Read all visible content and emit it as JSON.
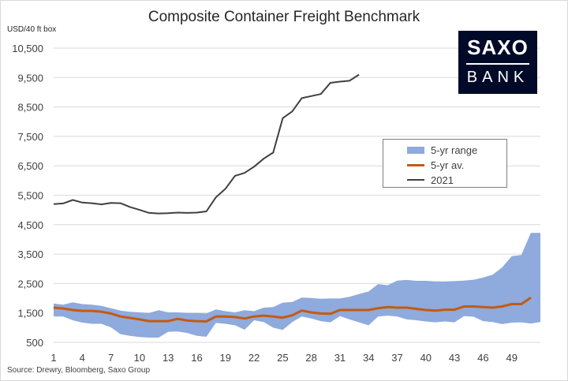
{
  "chart_data": {
    "type": "line",
    "title": "Composite Container Freight Benchmark",
    "ylabel": "USD/40 ft box",
    "xlabel": "",
    "ylim": [
      500,
      10500
    ],
    "xlim": [
      1,
      52
    ],
    "yticks": [
      "500",
      "1,500",
      "2,500",
      "3,500",
      "4,500",
      "5,500",
      "6,500",
      "7,500",
      "8,500",
      "9,500",
      "10,500"
    ],
    "xticks": [
      "1",
      "4",
      "7",
      "10",
      "13",
      "16",
      "19",
      "22",
      "25",
      "28",
      "31",
      "34",
      "37",
      "40",
      "43",
      "46",
      "49"
    ],
    "grid": "horizontal",
    "legend_position": "right",
    "range_series": {
      "name": "5-yr range",
      "color": "#8faadc",
      "x": [
        1,
        2,
        3,
        4,
        5,
        6,
        7,
        8,
        9,
        10,
        11,
        12,
        13,
        14,
        15,
        16,
        17,
        18,
        19,
        20,
        21,
        22,
        23,
        24,
        25,
        26,
        27,
        28,
        29,
        30,
        31,
        32,
        33,
        34,
        35,
        36,
        37,
        38,
        39,
        40,
        41,
        42,
        43,
        44,
        45,
        46,
        47,
        48,
        49,
        50,
        51,
        52
      ],
      "upper": [
        1820,
        1780,
        1860,
        1800,
        1780,
        1740,
        1660,
        1580,
        1540,
        1520,
        1500,
        1590,
        1520,
        1520,
        1500,
        1500,
        1480,
        1620,
        1560,
        1520,
        1590,
        1560,
        1680,
        1700,
        1850,
        1870,
        2020,
        2010,
        1980,
        1990,
        1990,
        2050,
        2140,
        2230,
        2480,
        2440,
        2600,
        2620,
        2590,
        2590,
        2570,
        2570,
        2580,
        2600,
        2630,
        2700,
        2800,
        3050,
        3430,
        3470,
        4220,
        4220
      ],
      "lower": [
        1380,
        1380,
        1250,
        1170,
        1130,
        1130,
        1010,
        780,
        720,
        680,
        660,
        660,
        860,
        870,
        820,
        720,
        690,
        1160,
        1130,
        1080,
        930,
        1250,
        1190,
        1000,
        920,
        1190,
        1380,
        1310,
        1220,
        1180,
        1390,
        1280,
        1180,
        1080,
        1380,
        1410,
        1380,
        1280,
        1250,
        1210,
        1180,
        1210,
        1180,
        1390,
        1370,
        1220,
        1190,
        1120,
        1170,
        1180,
        1140,
        1190
      ]
    },
    "series": [
      {
        "name": "5-yr av.",
        "color": "#c55a11",
        "x": [
          1,
          2,
          3,
          4,
          5,
          6,
          7,
          8,
          9,
          10,
          11,
          12,
          13,
          14,
          15,
          16,
          17,
          18,
          19,
          20,
          21,
          22,
          23,
          24,
          25,
          26,
          27,
          28,
          29,
          30,
          31,
          32,
          33,
          34,
          35,
          36,
          37,
          38,
          39,
          40,
          41,
          42,
          43,
          44,
          45,
          46,
          47,
          48,
          49,
          50,
          51
        ],
        "values": [
          1680,
          1650,
          1600,
          1570,
          1570,
          1540,
          1480,
          1380,
          1330,
          1280,
          1220,
          1220,
          1220,
          1300,
          1240,
          1220,
          1210,
          1380,
          1380,
          1360,
          1310,
          1380,
          1410,
          1380,
          1340,
          1420,
          1580,
          1520,
          1480,
          1470,
          1600,
          1600,
          1600,
          1600,
          1660,
          1700,
          1680,
          1680,
          1640,
          1600,
          1580,
          1610,
          1610,
          1720,
          1720,
          1700,
          1680,
          1720,
          1800,
          1800,
          2020
        ]
      },
      {
        "name": "2021",
        "color": "#404040",
        "x": [
          1,
          2,
          3,
          4,
          5,
          6,
          7,
          8,
          9,
          10,
          11,
          12,
          13,
          14,
          15,
          16,
          17,
          18,
          19,
          20,
          21,
          22,
          23,
          24,
          25,
          26,
          27,
          28,
          29,
          30,
          31,
          32,
          33
        ],
        "values": [
          5200,
          5220,
          5340,
          5250,
          5230,
          5190,
          5240,
          5230,
          5100,
          5000,
          4900,
          4880,
          4890,
          4910,
          4900,
          4910,
          4950,
          5430,
          5720,
          6160,
          6260,
          6470,
          6740,
          6950,
          8120,
          8350,
          8800,
          8870,
          8940,
          9320,
          9360,
          9390,
          9600
        ]
      }
    ]
  },
  "source_text": "Source: Drewry, Bloomberg, Saxo Group",
  "logo": {
    "top_text": "SAXO",
    "bottom_text": "BANK"
  }
}
